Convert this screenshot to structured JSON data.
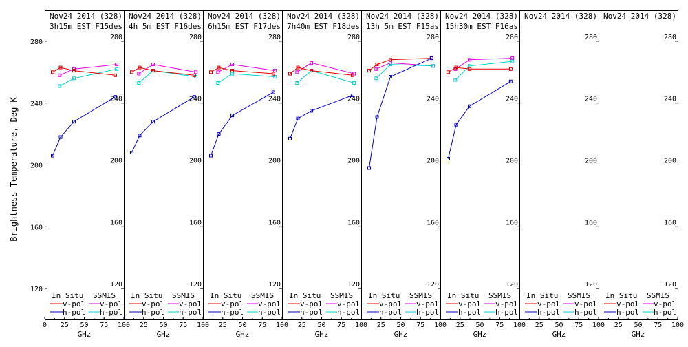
{
  "figure": {
    "ylabel": "Brightness Temperature, Deg K",
    "xlabel": "GHz"
  },
  "legend": {
    "in_situ_label": "In Situ",
    "ssmis_label": "SSMIS",
    "vpol_label": "v-pol",
    "hpol_label": "h-pol"
  },
  "colors": {
    "insitu_v": "#e00000",
    "insitu_h": "#0000c0",
    "ssmis_v": "#e000e0",
    "ssmis_h": "#00d0d0"
  },
  "chart_data": [
    {
      "type": "line",
      "title_line1": "Nov24 2014 (328)",
      "title_line2": "3h15m EST F15des",
      "xlabel": "GHz",
      "ylabel": "Brightness Temperature, Deg K",
      "xlim": [
        0,
        100
      ],
      "ylim": [
        100,
        300
      ],
      "xticks": [
        0,
        25,
        50,
        75,
        100
      ],
      "yticks": [
        120,
        160,
        200,
        240,
        280
      ],
      "series": [
        {
          "name": "In Situ v-pol",
          "x": [
            10,
            20,
            37,
            89
          ],
          "y": [
            260,
            263,
            261,
            258
          ]
        },
        {
          "name": "In Situ h-pol",
          "x": [
            10,
            20,
            37,
            89
          ],
          "y": [
            206,
            218,
            228,
            244
          ]
        },
        {
          "name": "SSMIS v-pol",
          "x": [
            19,
            37,
            91
          ],
          "y": [
            258,
            262,
            265
          ]
        },
        {
          "name": "SSMIS h-pol",
          "x": [
            19,
            37,
            91
          ],
          "y": [
            251,
            256,
            262
          ]
        }
      ]
    },
    {
      "type": "line",
      "title_line1": "Nov24 2014 (328)",
      "title_line2": "4h 5m EST F16des",
      "xlabel": "GHz",
      "ylabel": "Brightness Temperature, Deg K",
      "xlim": [
        0,
        100
      ],
      "ylim": [
        100,
        300
      ],
      "xticks": [
        0,
        25,
        50,
        75,
        100
      ],
      "yticks": [
        120,
        160,
        200,
        240,
        280
      ],
      "series": [
        {
          "name": "In Situ v-pol",
          "x": [
            10,
            20,
            37,
            89
          ],
          "y": [
            260,
            263,
            261,
            258
          ]
        },
        {
          "name": "In Situ h-pol",
          "x": [
            10,
            20,
            37,
            89
          ],
          "y": [
            208,
            219,
            228,
            244
          ]
        },
        {
          "name": "SSMIS v-pol",
          "x": [
            19,
            37,
            91
          ],
          "y": [
            259,
            265,
            260
          ]
        },
        {
          "name": "SSMIS h-pol",
          "x": [
            19,
            37,
            91
          ],
          "y": [
            253,
            261,
            257
          ]
        }
      ]
    },
    {
      "type": "line",
      "title_line1": "Nov24 2014 (328)",
      "title_line2": "6h15m EST F17des",
      "xlabel": "GHz",
      "ylabel": "Brightness Temperature, Deg K",
      "xlim": [
        0,
        100
      ],
      "ylim": [
        100,
        300
      ],
      "xticks": [
        0,
        25,
        50,
        75,
        100
      ],
      "yticks": [
        120,
        160,
        200,
        240,
        280
      ],
      "series": [
        {
          "name": "In Situ v-pol",
          "x": [
            10,
            20,
            37,
            89
          ],
          "y": [
            260,
            263,
            261,
            259
          ]
        },
        {
          "name": "In Situ h-pol",
          "x": [
            10,
            20,
            37,
            89
          ],
          "y": [
            206,
            220,
            232,
            247
          ]
        },
        {
          "name": "SSMIS v-pol",
          "x": [
            19,
            37,
            91
          ],
          "y": [
            260,
            265,
            261
          ]
        },
        {
          "name": "SSMIS h-pol",
          "x": [
            19,
            37,
            91
          ],
          "y": [
            253,
            259,
            257
          ]
        }
      ]
    },
    {
      "type": "line",
      "title_line1": "Nov24 2014 (328)",
      "title_line2": "7h40m EST F18des",
      "xlabel": "GHz",
      "ylabel": "Brightness Temperature, Deg K",
      "xlim": [
        0,
        100
      ],
      "ylim": [
        100,
        300
      ],
      "xticks": [
        0,
        25,
        50,
        75,
        100
      ],
      "yticks": [
        120,
        160,
        200,
        240,
        280
      ],
      "series": [
        {
          "name": "In Situ v-pol",
          "x": [
            10,
            20,
            37,
            89
          ],
          "y": [
            259,
            263,
            261,
            258
          ]
        },
        {
          "name": "In Situ h-pol",
          "x": [
            10,
            20,
            37,
            89
          ],
          "y": [
            217,
            230,
            235,
            245
          ]
        },
        {
          "name": "SSMIS v-pol",
          "x": [
            19,
            37,
            91
          ],
          "y": [
            260,
            266,
            259
          ]
        },
        {
          "name": "SSMIS h-pol",
          "x": [
            19,
            37,
            91
          ],
          "y": [
            253,
            261,
            253
          ]
        }
      ]
    },
    {
      "type": "line",
      "title_line1": "Nov24 2014 (328)",
      "title_line2": "13h 5m EST F15asc",
      "xlabel": "GHz",
      "ylabel": "Brightness Temperature, Deg K",
      "xlim": [
        0,
        100
      ],
      "ylim": [
        100,
        300
      ],
      "xticks": [
        0,
        25,
        50,
        75,
        100
      ],
      "yticks": [
        120,
        160,
        200,
        240,
        280
      ],
      "series": [
        {
          "name": "In Situ v-pol",
          "x": [
            10,
            20,
            37,
            89
          ],
          "y": [
            261,
            265,
            268,
            269
          ]
        },
        {
          "name": "In Situ h-pol",
          "x": [
            10,
            20,
            37,
            89
          ],
          "y": [
            198,
            231,
            257,
            269
          ]
        },
        {
          "name": "SSMIS v-pol",
          "x": [
            19,
            37,
            91
          ],
          "y": [
            262,
            266,
            264
          ]
        },
        {
          "name": "SSMIS h-pol",
          "x": [
            19,
            37,
            91
          ],
          "y": [
            256,
            265,
            264
          ]
        }
      ]
    },
    {
      "type": "line",
      "title_line1": "Nov24 2014 (328)",
      "title_line2": "15h30m EST F16asc",
      "xlabel": "GHz",
      "ylabel": "Brightness Temperature, Deg K",
      "xlim": [
        0,
        100
      ],
      "ylim": [
        100,
        300
      ],
      "xticks": [
        0,
        25,
        50,
        75,
        100
      ],
      "yticks": [
        120,
        160,
        200,
        240,
        280
      ],
      "series": [
        {
          "name": "In Situ v-pol",
          "x": [
            10,
            20,
            37,
            89
          ],
          "y": [
            260,
            263,
            262,
            262
          ]
        },
        {
          "name": "In Situ h-pol",
          "x": [
            10,
            20,
            37,
            89
          ],
          "y": [
            204,
            226,
            238,
            254
          ]
        },
        {
          "name": "SSMIS v-pol",
          "x": [
            19,
            37,
            91
          ],
          "y": [
            262,
            268,
            269
          ]
        },
        {
          "name": "SSMIS h-pol",
          "x": [
            19,
            37,
            91
          ],
          "y": [
            255,
            264,
            267
          ]
        }
      ]
    },
    {
      "type": "line",
      "title_line1": "Nov24 2014 (328)",
      "title_line2": "",
      "xlabel": "GHz",
      "ylabel": "Brightness Temperature, Deg K",
      "xlim": [
        0,
        100
      ],
      "ylim": [
        100,
        300
      ],
      "xticks": [
        0,
        25,
        50,
        75,
        100
      ],
      "yticks": [
        120,
        160,
        200,
        240,
        280
      ],
      "series": []
    },
    {
      "type": "line",
      "title_line1": "Nov24 2014 (328)",
      "title_line2": "",
      "xlabel": "GHz",
      "ylabel": "Brightness Temperature, Deg K",
      "xlim": [
        0,
        100
      ],
      "ylim": [
        100,
        300
      ],
      "xticks": [
        0,
        25,
        50,
        75,
        100
      ],
      "yticks": [
        120,
        160,
        200,
        240,
        280
      ],
      "series": []
    }
  ]
}
